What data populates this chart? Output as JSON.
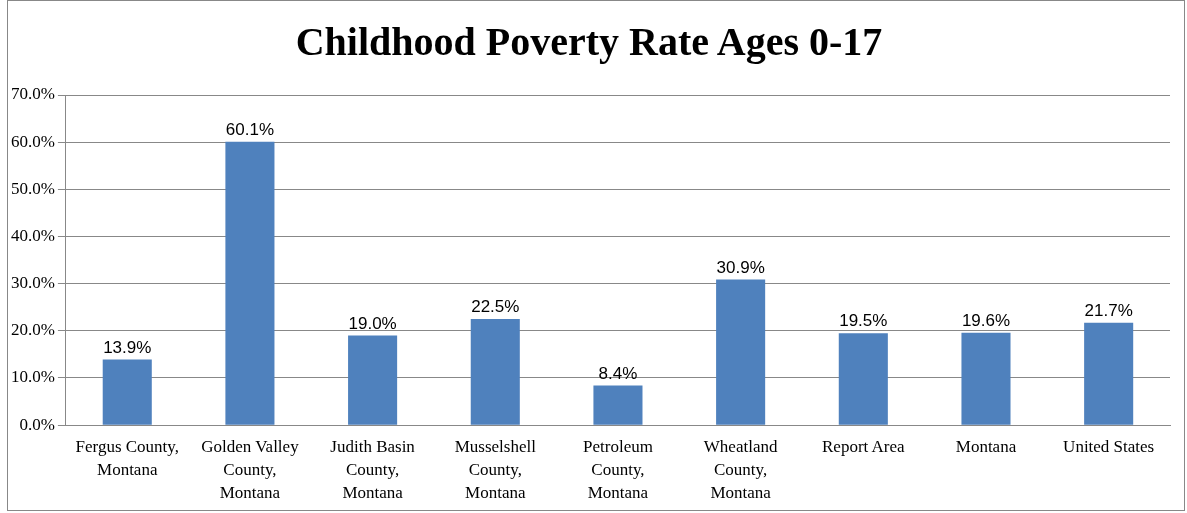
{
  "chart_data": {
    "type": "bar",
    "title": "Childhood Poverty Rate Ages 0-17",
    "categories": [
      "Fergus County, Montana",
      "Golden Valley County, Montana",
      "Judith Basin County, Montana",
      "Musselshell County, Montana",
      "Petroleum County, Montana",
      "Wheatland County, Montana",
      "Report Area",
      "Montana",
      "United States"
    ],
    "values": [
      13.9,
      60.1,
      19.0,
      22.5,
      8.4,
      30.9,
      19.5,
      19.6,
      21.7
    ],
    "value_labels": [
      "13.9%",
      "60.1%",
      "19.0%",
      "22.5%",
      "8.4%",
      "30.9%",
      "19.5%",
      "19.6%",
      "21.7%"
    ],
    "color": "#4f81bd",
    "ylim": [
      0,
      70
    ],
    "yticks": [
      {
        "value": 0,
        "label": "0.0%"
      },
      {
        "value": 10,
        "label": "10.0%"
      },
      {
        "value": 20,
        "label": "20.0%"
      },
      {
        "value": 30,
        "label": "30.0%"
      },
      {
        "value": 40,
        "label": "40.0%"
      },
      {
        "value": 50,
        "label": "50.0%"
      },
      {
        "value": 60,
        "label": "60.0%"
      },
      {
        "value": 70,
        "label": "70.0%"
      }
    ],
    "grid": "y",
    "legend": false
  }
}
